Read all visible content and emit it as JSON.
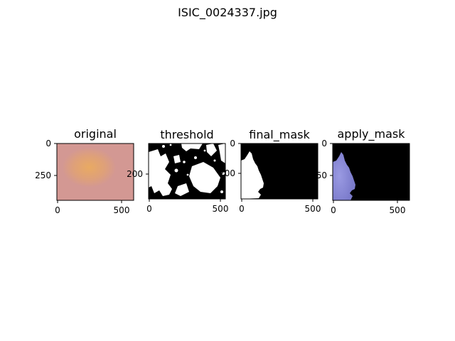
{
  "figure": {
    "title": "ISIC_0024337.jpg"
  },
  "colors": {
    "skin": "#d49a95",
    "lesion_center": "#e6a66a",
    "mask_white": "#ffffff",
    "mask_black": "#000000",
    "applied_blue": "#8f8fd8"
  },
  "panels": [
    {
      "title": "original",
      "xticks": [
        "0",
        "500"
      ],
      "yticks": [
        "0",
        "250"
      ]
    },
    {
      "title": "threshold",
      "xticks": [
        "0",
        "500"
      ],
      "yticks": [
        "200"
      ]
    },
    {
      "title": "final_mask",
      "xticks": [
        "0",
        "500"
      ],
      "yticks": [
        "0",
        "200"
      ]
    },
    {
      "title": "apply_mask",
      "xticks": [
        "0",
        "500"
      ],
      "yticks": [
        "0",
        "250"
      ]
    }
  ]
}
